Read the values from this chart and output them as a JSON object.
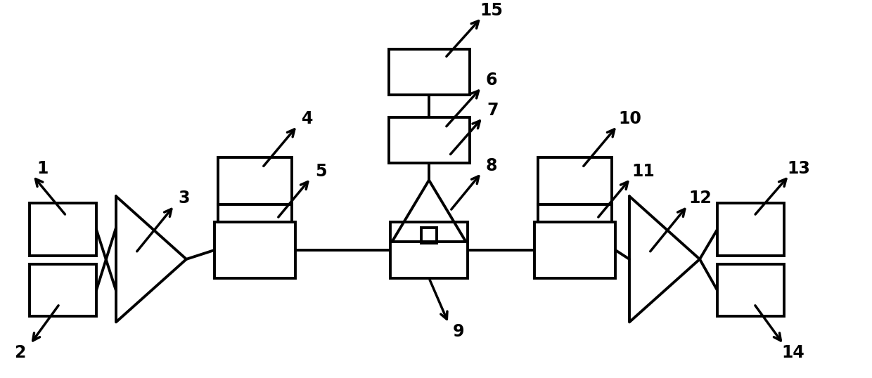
{
  "bg_color": "#ffffff",
  "lc": "#000000",
  "lw": 2.8,
  "arrow_lw": 2.5,
  "fontsize": 17
}
